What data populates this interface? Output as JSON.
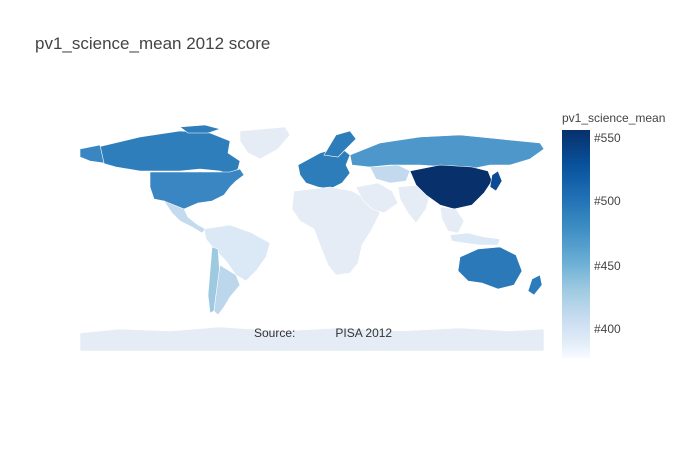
{
  "title": "pv1_science_mean 2012 score",
  "source": {
    "label": "Source:",
    "value": "PISA 2012"
  },
  "colorbar": {
    "title": "pv1_science_mean",
    "ticks": [
      "#550",
      "#500",
      "#450",
      "#400"
    ],
    "colors": [
      "#08306b",
      "#08519c",
      "#2171b5",
      "#4292c6",
      "#6baed6",
      "#9ecae1",
      "#c6dbef",
      "#deebf7",
      "#f7fbff"
    ]
  },
  "map": {
    "background_land": "#e5ecf6",
    "regions": [
      {
        "name": "Greenland",
        "color": "#e5ecf6"
      },
      {
        "name": "Canada",
        "color": "#2f7ebc"
      },
      {
        "name": "United States",
        "color": "#3a86c2"
      },
      {
        "name": "Mexico",
        "color": "#c4daee"
      },
      {
        "name": "Brazil",
        "color": "#dbe8f5"
      },
      {
        "name": "Chile",
        "color": "#9ecae1"
      },
      {
        "name": "Argentina",
        "color": "#bcd6ec"
      },
      {
        "name": "Russia",
        "color": "#4d97cb"
      },
      {
        "name": "Kazakhstan",
        "color": "#c2d9ee"
      },
      {
        "name": "China",
        "color": "#08306b"
      },
      {
        "name": "Japan",
        "color": "#0c4a94"
      },
      {
        "name": "Indonesia",
        "color": "#dbe8f5"
      },
      {
        "name": "Australia",
        "color": "#2b79b9"
      },
      {
        "name": "New Zealand",
        "color": "#2c7bba"
      },
      {
        "name": "Europe",
        "color": "#2e7dbb"
      }
    ]
  }
}
